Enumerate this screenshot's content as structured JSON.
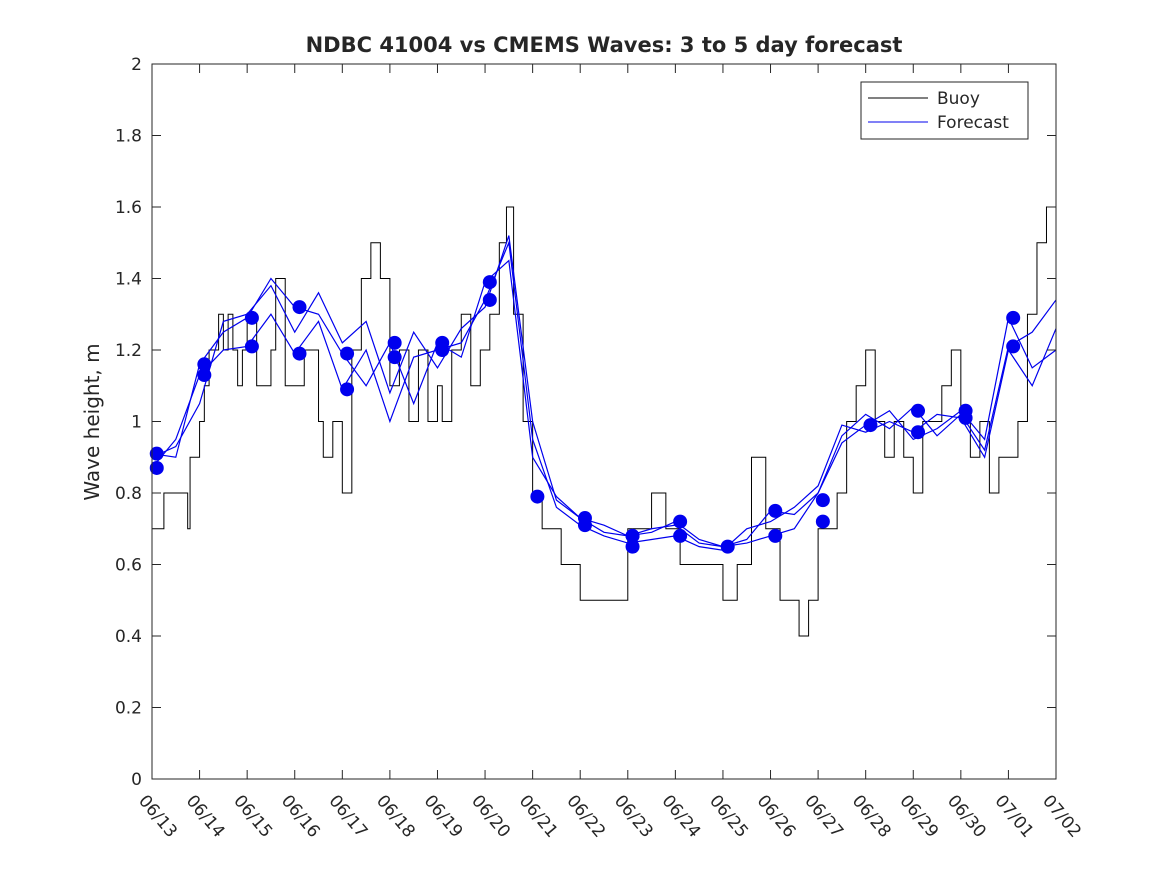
{
  "chart_data": {
    "type": "line",
    "title": "NDBC 41004 vs CMEMS Waves: 3 to 5 day forecast",
    "xlabel": "",
    "ylabel": "Wave height, m",
    "xlim": [
      "06/13",
      "07/02"
    ],
    "ylim": [
      0,
      2
    ],
    "x_ticks": [
      "06/13",
      "06/14",
      "06/15",
      "06/16",
      "06/17",
      "06/18",
      "06/19",
      "06/20",
      "06/21",
      "06/22",
      "06/23",
      "06/24",
      "06/25",
      "06/26",
      "06/27",
      "06/28",
      "06/29",
      "06/30",
      "07/01",
      "07/02"
    ],
    "y_ticks": [
      "0",
      "0.2",
      "0.4",
      "0.6",
      "0.8",
      "1",
      "1.2",
      "1.4",
      "1.6",
      "1.8",
      "2"
    ],
    "grid": false,
    "legend_position": "top-right",
    "series": [
      {
        "name": "Buoy",
        "color": "#000000",
        "x_days": [
          0,
          0.25,
          0.5,
          0.7,
          0.75,
          0.8,
          1.0,
          1.1,
          1.2,
          1.3,
          1.4,
          1.5,
          1.6,
          1.7,
          1.8,
          1.9,
          2.0,
          2.2,
          2.5,
          2.6,
          2.8,
          3.0,
          3.2,
          3.5,
          3.6,
          3.8,
          4.0,
          4.2,
          4.4,
          4.6,
          4.8,
          5.0,
          5.2,
          5.4,
          5.6,
          5.8,
          6.0,
          6.1,
          6.3,
          6.5,
          6.7,
          6.9,
          7.1,
          7.3,
          7.45,
          7.6,
          7.8,
          8.0,
          8.2,
          8.4,
          8.6,
          8.8,
          9.0,
          9.2,
          9.4,
          9.6,
          9.8,
          10.0,
          10.2,
          10.5,
          10.8,
          11.1,
          11.4,
          11.7,
          12.0,
          12.3,
          12.6,
          12.9,
          13.2,
          13.4,
          13.6,
          13.8,
          14.0,
          14.2,
          14.4,
          14.6,
          14.8,
          15.0,
          15.2,
          15.4,
          15.6,
          15.8,
          16.0,
          16.2,
          16.4,
          16.6,
          16.8,
          17.0,
          17.2,
          17.4,
          17.6,
          17.8,
          18.0,
          18.2,
          18.4,
          18.6,
          18.8,
          19.0
        ],
        "values": [
          0.7,
          0.8,
          0.8,
          0.8,
          0.7,
          0.9,
          1.0,
          1.1,
          1.2,
          1.2,
          1.3,
          1.2,
          1.3,
          1.2,
          1.1,
          1.2,
          1.3,
          1.1,
          1.2,
          1.4,
          1.1,
          1.1,
          1.2,
          1.0,
          0.9,
          1.0,
          0.8,
          1.2,
          1.4,
          1.5,
          1.4,
          1.1,
          1.2,
          1.0,
          1.2,
          1.0,
          1.1,
          1.0,
          1.2,
          1.3,
          1.1,
          1.2,
          1.3,
          1.5,
          1.6,
          1.3,
          1.0,
          0.8,
          0.7,
          0.7,
          0.6,
          0.6,
          0.5,
          0.5,
          0.5,
          0.5,
          0.5,
          0.7,
          0.7,
          0.8,
          0.7,
          0.6,
          0.6,
          0.6,
          0.5,
          0.6,
          0.9,
          0.7,
          0.5,
          0.5,
          0.4,
          0.5,
          0.7,
          0.7,
          0.8,
          1.0,
          1.1,
          1.2,
          1.0,
          0.9,
          1.0,
          0.9,
          0.8,
          1.0,
          1.0,
          1.1,
          1.2,
          1.0,
          0.9,
          1.0,
          0.8,
          0.9,
          0.9,
          1.0,
          1.3,
          1.5,
          1.6,
          1.6
        ]
      },
      {
        "name": "Forecast",
        "color": "#0000ee",
        "runs": [
          {
            "x_days": [
              0,
              0.5,
              1.0,
              1.5,
              2.0,
              2.5,
              3.0,
              3.5,
              4.0,
              4.5,
              5.0,
              5.5,
              6.0,
              6.5,
              7.0,
              7.5,
              8.0,
              8.5,
              9.0,
              9.5,
              10.0,
              10.5,
              11.0,
              11.5,
              12.0,
              12.5,
              13.0,
              13.5,
              14.0,
              14.5,
              15.0,
              15.5,
              16.0,
              16.5,
              17.0,
              17.5,
              18.0,
              18.5,
              19.0
            ],
            "values": [
              0.9,
              0.93,
              1.05,
              1.28,
              1.3,
              1.38,
              1.25,
              1.36,
              1.22,
              1.28,
              1.08,
              1.25,
              1.15,
              1.26,
              1.32,
              1.52,
              1.0,
              0.78,
              0.73,
              0.71,
              0.68,
              0.7,
              0.71,
              0.66,
              0.65,
              0.66,
              0.68,
              0.7,
              0.8,
              0.96,
              1.02,
              0.98,
              1.04,
              0.96,
              1.02,
              0.92,
              1.21,
              1.25,
              1.34
            ]
          },
          {
            "x_days": [
              0,
              0.5,
              1.0,
              1.5,
              2.0,
              2.5,
              3.0,
              3.5,
              4.0,
              4.5,
              5.0,
              5.5,
              6.0,
              6.5,
              7.0,
              7.5,
              8.0,
              8.5,
              9.0,
              9.5,
              10.0,
              10.5,
              11.0,
              11.5,
              12.0,
              12.5,
              13.0,
              13.5,
              14.0,
              14.5,
              15.0,
              15.5,
              16.0,
              16.5,
              17.0,
              17.5,
              18.0,
              18.5,
              19.0
            ],
            "values": [
              0.87,
              0.95,
              1.13,
              1.2,
              1.21,
              1.3,
              1.19,
              1.28,
              1.09,
              1.2,
              1.0,
              1.18,
              1.2,
              1.22,
              1.34,
              1.5,
              0.95,
              0.76,
              0.71,
              0.68,
              0.66,
              0.67,
              0.68,
              0.65,
              0.64,
              0.7,
              0.72,
              0.76,
              0.82,
              0.99,
              0.97,
              1.0,
              0.97,
              1.02,
              1.01,
              0.9,
              1.2,
              1.1,
              1.26
            ]
          },
          {
            "x_days": [
              0,
              0.5,
              1.0,
              1.5,
              2.0,
              2.5,
              3.0,
              3.5,
              4.0,
              4.5,
              5.0,
              5.5,
              6.0,
              6.5,
              7.0,
              7.5,
              8.0,
              8.5,
              9.0,
              9.5,
              10.0,
              10.5,
              11.0,
              11.5,
              12.0,
              12.5,
              13.0,
              13.5,
              14.0,
              14.5,
              15.0,
              15.5,
              16.0,
              16.5,
              17.0,
              17.5,
              18.0,
              18.5,
              19.0
            ],
            "values": [
              0.91,
              0.9,
              1.16,
              1.25,
              1.29,
              1.4,
              1.32,
              1.3,
              1.19,
              1.1,
              1.22,
              1.05,
              1.22,
              1.18,
              1.39,
              1.45,
              0.9,
              0.79,
              0.73,
              0.69,
              0.68,
              0.69,
              0.72,
              0.67,
              0.65,
              0.67,
              0.75,
              0.74,
              0.8,
              0.94,
              0.99,
              1.03,
              0.95,
              0.98,
              1.03,
              0.95,
              1.29,
              1.15,
              1.2
            ]
          }
        ]
      }
    ],
    "markers": {
      "color": "#0000ee",
      "x_days": [
        0.1,
        0.1,
        1.1,
        1.1,
        2.1,
        2.1,
        3.1,
        3.1,
        4.1,
        4.1,
        5.1,
        5.1,
        6.1,
        6.1,
        7.1,
        7.1,
        8.1,
        9.1,
        9.1,
        10.1,
        10.1,
        10.1,
        11.1,
        11.1,
        12.1,
        13.1,
        13.1,
        14.1,
        14.1,
        15.1,
        16.1,
        16.1,
        17.1,
        17.1,
        18.1,
        18.1
      ],
      "values": [
        0.91,
        0.87,
        1.16,
        1.13,
        1.29,
        1.21,
        1.32,
        1.19,
        1.19,
        1.09,
        1.22,
        1.18,
        1.22,
        1.2,
        1.39,
        1.34,
        0.79,
        0.73,
        0.71,
        0.68,
        0.68,
        0.65,
        0.72,
        0.68,
        0.65,
        0.75,
        0.68,
        0.78,
        0.72,
        0.99,
        1.03,
        0.97,
        1.03,
        1.01,
        1.29,
        1.21
      ]
    }
  }
}
